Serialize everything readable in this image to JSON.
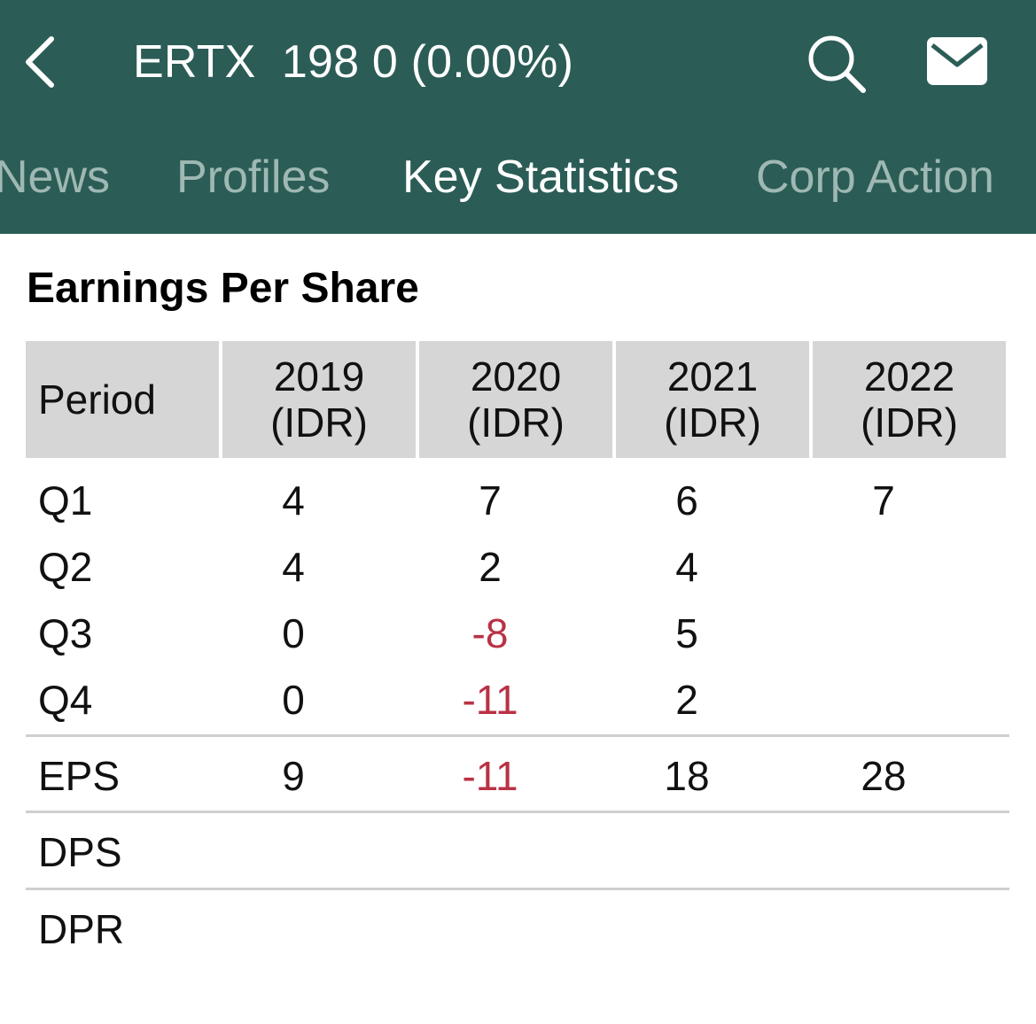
{
  "header": {
    "title": "ERTX  198 0 (0.00%)",
    "back_icon": "chevron-left-icon",
    "search_icon": "search-icon",
    "mail_icon": "mail-icon"
  },
  "tabs": [
    {
      "label": "News",
      "active": false
    },
    {
      "label": "Profiles",
      "active": false
    },
    {
      "label": "Key Statistics",
      "active": true
    },
    {
      "label": "Corp Action",
      "active": false
    }
  ],
  "section": {
    "title": "Earnings Per Share"
  },
  "table": {
    "period_header": "Period",
    "columns": [
      {
        "year": "2019",
        "unit": "(IDR)"
      },
      {
        "year": "2020",
        "unit": "(IDR)"
      },
      {
        "year": "2021",
        "unit": "(IDR)"
      },
      {
        "year": "2022",
        "unit": "(IDR)"
      }
    ],
    "rows": [
      {
        "label": "Q1",
        "values": [
          "4",
          "7",
          "6",
          "7"
        ]
      },
      {
        "label": "Q2",
        "values": [
          "4",
          "2",
          "4",
          ""
        ]
      },
      {
        "label": "Q3",
        "values": [
          "0",
          "-8",
          "5",
          ""
        ]
      },
      {
        "label": "Q4",
        "values": [
          "0",
          "-11",
          "2",
          ""
        ]
      },
      {
        "label": "EPS",
        "values": [
          "9",
          "-11",
          "18",
          "28"
        ]
      },
      {
        "label": "DPS",
        "values": [
          "",
          "",
          "",
          ""
        ]
      },
      {
        "label": "DPR",
        "values": [
          "",
          "",
          "",
          ""
        ]
      }
    ]
  },
  "colors": {
    "header_bg": "#2b5d56",
    "tab_inactive": "#9fb8b3",
    "tab_active": "#ffffff",
    "negative": "#b83245",
    "table_header_bg": "#d6d6d6"
  }
}
